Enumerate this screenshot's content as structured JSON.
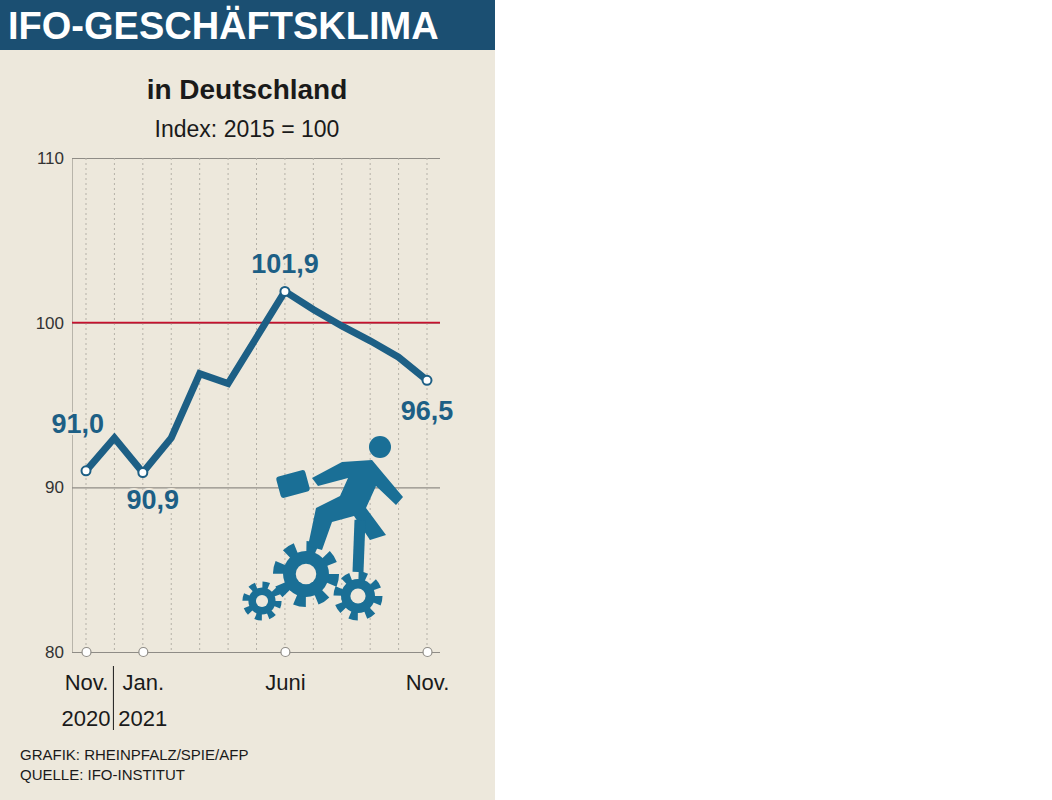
{
  "chart_data": {
    "type": "line",
    "header": "IFO-GESCHÄFTSKLIMA",
    "title": "in Deutschland",
    "subtitle": "Index: 2015 = 100",
    "categories": [
      "Nov.",
      null,
      "Jan.",
      null,
      null,
      null,
      null,
      "Juni",
      null,
      null,
      null,
      null,
      "Nov."
    ],
    "x_sublabels": [
      "2020",
      null,
      "2021",
      null,
      null,
      null,
      null,
      null,
      null,
      null,
      null,
      null,
      null
    ],
    "values": [
      91.0,
      93.0,
      90.9,
      93.0,
      96.9,
      96.3,
      99.1,
      101.9,
      100.8,
      99.8,
      98.9,
      97.9,
      96.5
    ],
    "value_labels": [
      "91,0",
      null,
      "90,9",
      null,
      null,
      null,
      null,
      "101,9",
      null,
      null,
      null,
      null,
      "96,5"
    ],
    "data_labels": true,
    "marker": "circle",
    "color": "#1d5f85",
    "ylim": [
      80,
      110
    ],
    "yticks": [
      80,
      90,
      100,
      110
    ],
    "grid": true,
    "reference_line": {
      "value": 100,
      "color": "#c8102e"
    },
    "source": [
      "GRAFIK: RHEINPFALZ/SPIE/AFP",
      "QUELLE: IFO-INSTITUT"
    ]
  }
}
